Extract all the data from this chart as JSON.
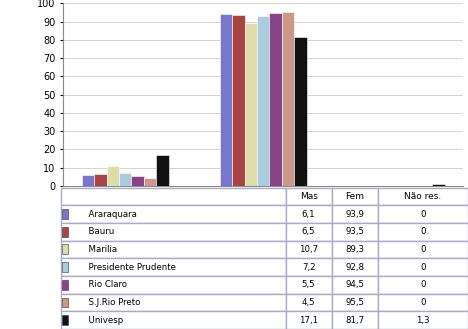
{
  "categories": [
    "Mas",
    "Fem",
    "Não res."
  ],
  "series": [
    {
      "label": "Araraquara",
      "values": [
        6.1,
        93.9,
        0
      ],
      "color": "#7777CC"
    },
    {
      "label": "Bauru",
      "values": [
        6.5,
        93.5,
        0
      ],
      "color": "#AA4444"
    },
    {
      "label": "Marilia",
      "values": [
        10.7,
        89.3,
        0
      ],
      "color": "#DDDDAA"
    },
    {
      "label": "Presidente Prudente",
      "values": [
        7.2,
        92.8,
        0
      ],
      "color": "#AACCDD"
    },
    {
      "label": "Rio Claro",
      "values": [
        5.5,
        94.5,
        0
      ],
      "color": "#884488"
    },
    {
      "label": "S.J.Rio Preto",
      "values": [
        4.5,
        95.5,
        0
      ],
      "color": "#CC9988"
    },
    {
      "label": "Univesp",
      "values": [
        17.1,
        81.7,
        1.3
      ],
      "color": "#111111"
    }
  ],
  "table_rows": [
    [
      "Araraquara",
      "6,1",
      "93,9",
      "0"
    ],
    [
      "Bauru",
      "6,5",
      "93,5",
      "0"
    ],
    [
      "Marilia",
      "10,7",
      "89,3",
      "0"
    ],
    [
      "Presidente Prudente",
      "7,2",
      "92,8",
      "0"
    ],
    [
      "Rio Claro",
      "5,5",
      "94,5",
      "0"
    ],
    [
      "S.J.Rio Preto",
      "4,5",
      "95,5",
      "0"
    ],
    [
      "Univesp",
      "17,1",
      "81,7",
      "1,3"
    ]
  ],
  "col_labels": [
    "",
    "Mas",
    "Fem",
    "Não res."
  ],
  "ylim": [
    0,
    100
  ],
  "yticks": [
    0,
    10,
    20,
    30,
    40,
    50,
    60,
    70,
    80,
    90,
    100
  ],
  "background_color": "#FFFFFF",
  "grid_color": "#CCCCCC",
  "bar_width": 0.09,
  "figsize": [
    4.68,
    3.29
  ],
  "dpi": 100
}
